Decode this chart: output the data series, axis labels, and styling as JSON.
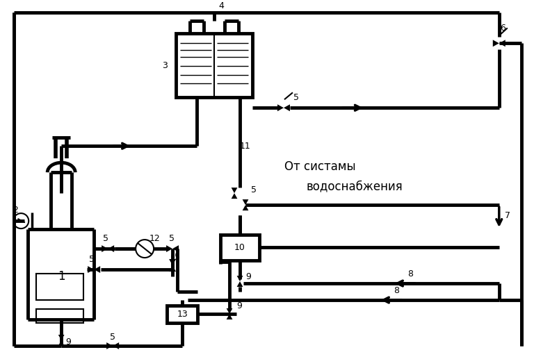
{
  "lw_main": 3.5,
  "lw_med": 2.5,
  "lw_thin": 1.5,
  "lw_inner": 1.2
}
